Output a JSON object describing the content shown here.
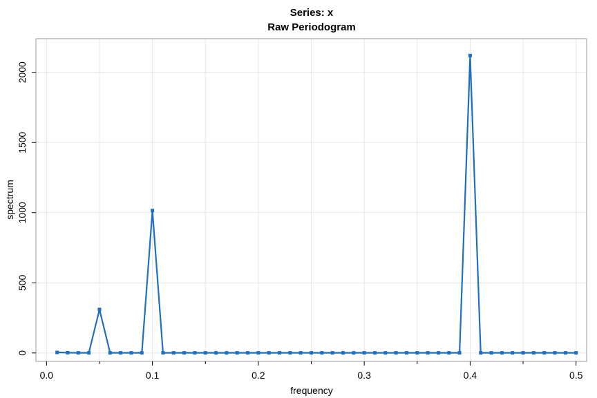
{
  "chart_data": {
    "type": "line",
    "title": "Series: x",
    "subtitle": "Raw Periodogram",
    "xlabel": "frequency",
    "ylabel": "spectrum",
    "xlim": [
      -0.01,
      0.51
    ],
    "ylim": [
      -60,
      2240
    ],
    "x_ticks": [
      0.0,
      0.1,
      0.2,
      0.3,
      0.4,
      0.5
    ],
    "x_tick_labels": [
      "0.0",
      "0.1",
      "0.2",
      "0.3",
      "0.4",
      "0.5"
    ],
    "x_minor_ticks": [
      0.05,
      0.15,
      0.25,
      0.35,
      0.45
    ],
    "y_ticks": [
      0,
      500,
      1000,
      1500,
      2000
    ],
    "y_tick_labels": [
      "0",
      "500",
      "1000",
      "1500",
      "2000"
    ],
    "grid": true,
    "colors": {
      "series": "#1f6fbf",
      "grid": "#e6e6e6",
      "frame": "#999999"
    },
    "series": [
      {
        "x": [
          0.01,
          0.02,
          0.03,
          0.04,
          0.05,
          0.06,
          0.07,
          0.08,
          0.09,
          0.1,
          0.11,
          0.12,
          0.13,
          0.14,
          0.15,
          0.16,
          0.17,
          0.18,
          0.19,
          0.2,
          0.21,
          0.22,
          0.23,
          0.24,
          0.25,
          0.26,
          0.27,
          0.28,
          0.29,
          0.3,
          0.31,
          0.32,
          0.33,
          0.34,
          0.35,
          0.36,
          0.37,
          0.38,
          0.39,
          0.4,
          0.41,
          0.42,
          0.43,
          0.44,
          0.45,
          0.46,
          0.47,
          0.48,
          0.49,
          0.5
        ],
        "values": [
          4,
          2,
          1,
          1,
          310,
          1,
          1,
          1,
          1,
          1015,
          1,
          1,
          1,
          1,
          1,
          1,
          1,
          1,
          1,
          1,
          1,
          1,
          1,
          1,
          1,
          1,
          1,
          1,
          1,
          1,
          1,
          1,
          1,
          1,
          1,
          1,
          1,
          1,
          1,
          2120,
          1,
          1,
          1,
          1,
          1,
          1,
          1,
          1,
          1,
          1
        ]
      }
    ]
  }
}
